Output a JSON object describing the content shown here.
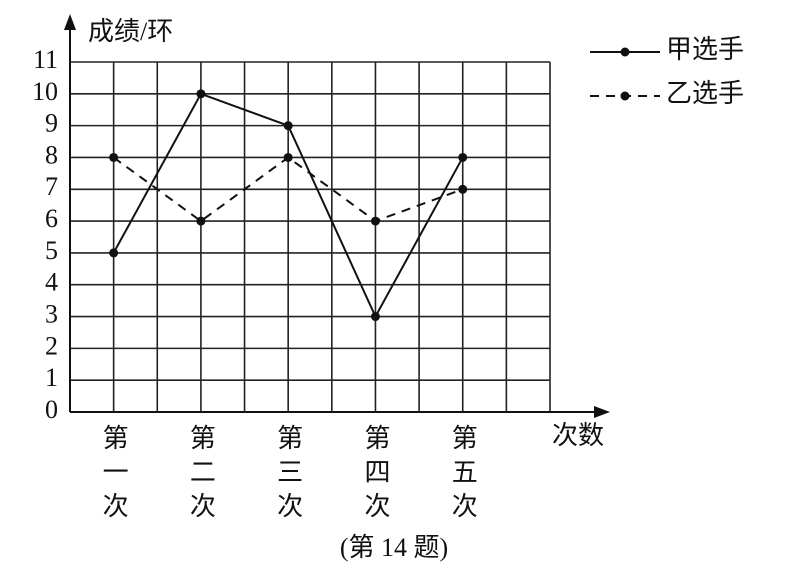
{
  "chart_data": {
    "type": "line",
    "y_label": "成绩/环",
    "x_label": "次数",
    "caption": "(第 14 题)",
    "categories": [
      "第一次",
      "第二次",
      "第三次",
      "第四次",
      "第五次"
    ],
    "series": [
      {
        "name": "甲选手",
        "color": "#111111",
        "line_style": "solid",
        "values": [
          5,
          10,
          9,
          3,
          8
        ]
      },
      {
        "name": "乙选手",
        "color": "#111111",
        "line_style": "dashed",
        "values": [
          8,
          6,
          8,
          6,
          7
        ]
      }
    ],
    "ylim": [
      0,
      11
    ],
    "yticks": [
      0,
      1,
      2,
      3,
      4,
      5,
      6,
      7,
      8,
      9,
      10,
      11
    ],
    "grid": true,
    "legend": "top-right"
  }
}
